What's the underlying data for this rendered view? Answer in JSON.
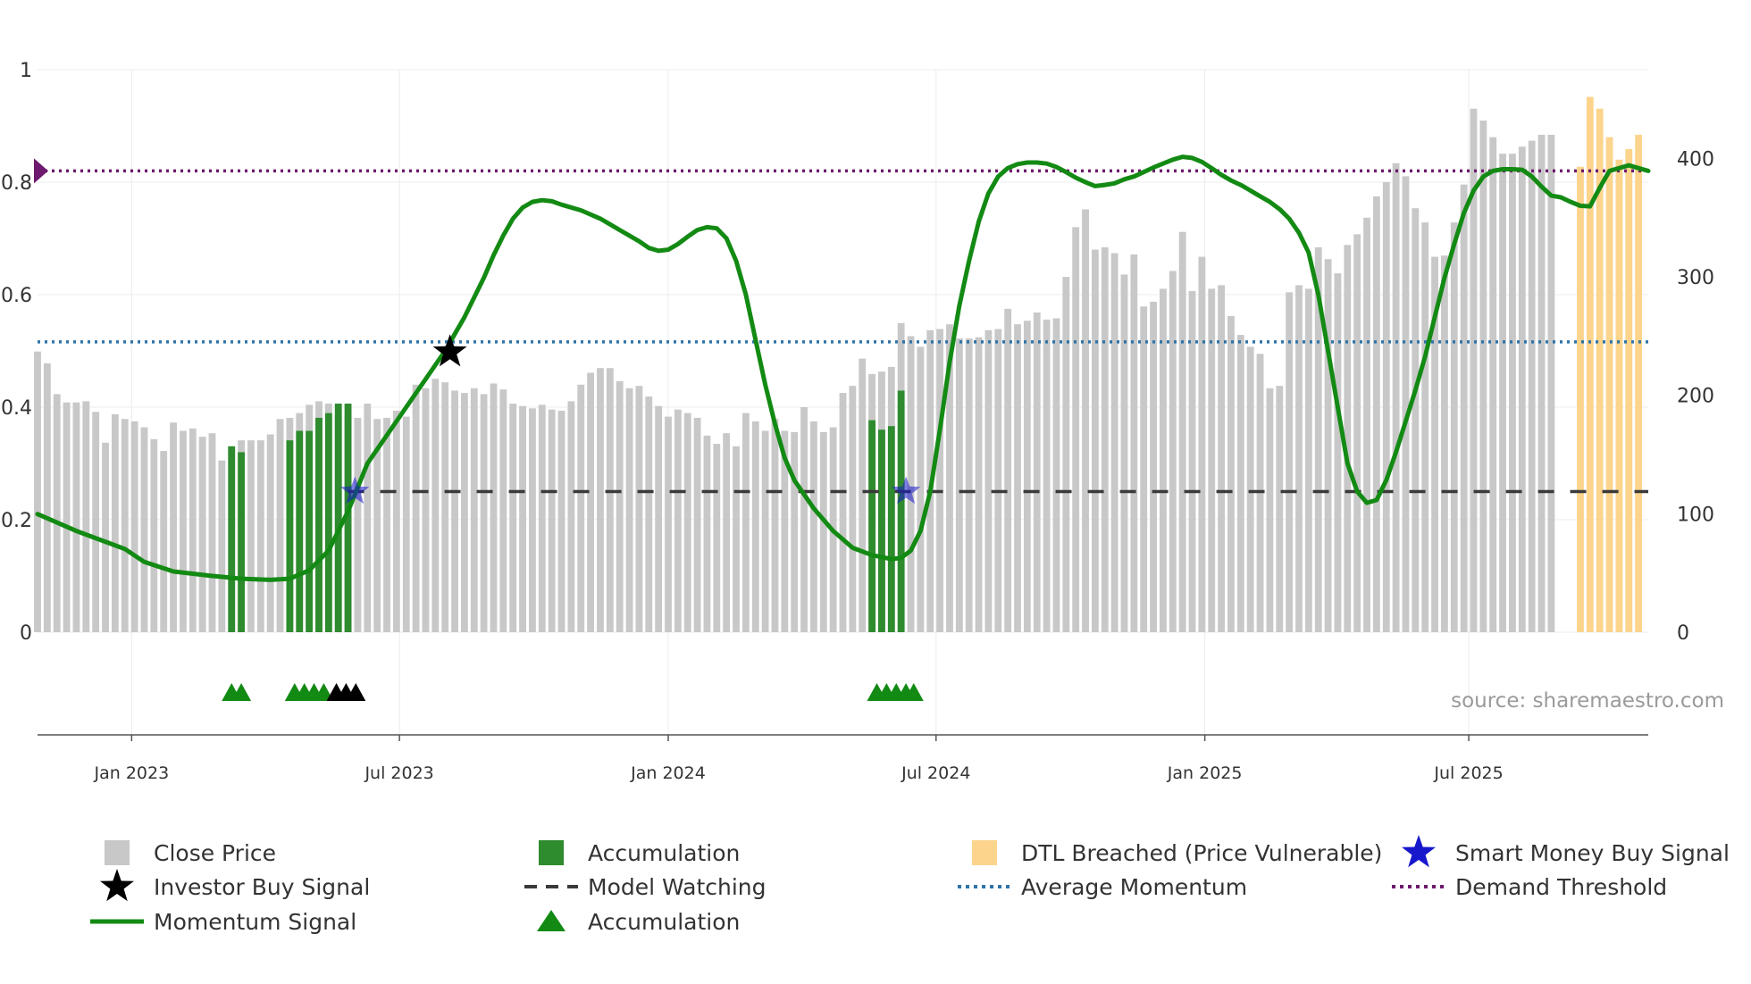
{
  "chart_data": {
    "type": "bar",
    "title": "",
    "source": "source: sharemaestro.com",
    "colors": {
      "close": "#c8c8c8",
      "accumulation": "#2e8b2e",
      "dtl": "#fcd48c",
      "momentum": "#138a13",
      "average": "#2f73a8",
      "threshold": "#6e1a6e",
      "watching": "#3a3a3a",
      "investor": "#000000",
      "smart": "#1717cc"
    },
    "y_left": {
      "ylim": [
        0,
        1
      ],
      "ticks": [
        0,
        0.2,
        0.4,
        0.6,
        0.8,
        1
      ],
      "labels": [
        "0",
        "0.2",
        "0.4",
        "0.6",
        "0.8",
        "1"
      ]
    },
    "y_right": {
      "ylim": [
        0,
        475
      ],
      "ticks": [
        0,
        100,
        200,
        300,
        400
      ],
      "labels": [
        "0",
        "100",
        "200",
        "300",
        "400"
      ]
    },
    "x_axis": {
      "range": [
        0,
        166
      ],
      "ticks": [
        9.7,
        37.3,
        65,
        92.6,
        120.3,
        147.5
      ],
      "labels": [
        "Jan 2023",
        "Jul 2023",
        "Jan 2024",
        "Jul 2024",
        "Jan 2025",
        "Jul 2025"
      ]
    },
    "close_price": [
      237,
      227,
      201,
      194,
      194,
      195,
      186,
      160,
      184,
      180,
      178,
      173,
      163,
      153,
      177,
      170,
      172,
      165,
      168,
      145,
      155,
      162,
      162,
      162,
      167,
      180,
      181,
      185,
      192,
      195,
      193,
      183,
      182,
      181,
      193,
      180,
      181,
      187,
      182,
      209,
      206,
      214,
      211,
      204,
      202,
      206,
      201,
      210,
      205,
      193,
      191,
      189,
      192,
      188,
      187,
      195,
      209,
      219,
      223,
      223,
      212,
      206,
      208,
      199,
      191,
      182,
      188,
      185,
      181,
      166,
      159,
      168,
      157,
      185,
      178,
      170,
      180,
      170,
      169,
      190,
      178,
      169,
      173,
      202,
      208,
      231,
      218,
      220,
      224,
      261,
      250,
      241,
      255,
      256,
      260,
      248,
      248,
      249,
      255,
      256,
      273,
      260,
      263,
      270,
      264,
      265,
      300,
      342,
      357,
      323,
      325,
      320,
      302,
      319,
      275,
      279,
      290,
      305,
      338,
      288,
      317,
      290,
      293,
      267,
      251,
      241,
      235,
      206,
      208,
      287,
      293,
      290,
      325,
      315,
      303,
      327,
      336,
      350,
      368,
      380,
      396,
      385,
      358,
      346,
      317,
      318,
      346,
      378,
      442,
      432,
      418,
      404,
      404,
      410,
      415,
      420,
      420
    ],
    "accumulation_bars": [
      {
        "x": 20,
        "value": 157
      },
      {
        "x": 21,
        "value": 152
      },
      {
        "x": 26,
        "value": 162
      },
      {
        "x": 27,
        "value": 170
      },
      {
        "x": 28,
        "value": 170
      },
      {
        "x": 29,
        "value": 181
      },
      {
        "x": 30,
        "value": 185
      },
      {
        "x": 31,
        "value": 193
      },
      {
        "x": 32,
        "value": 193
      },
      {
        "x": 86,
        "value": 179
      },
      {
        "x": 87,
        "value": 171
      },
      {
        "x": 88,
        "value": 174
      },
      {
        "x": 89,
        "value": 204
      }
    ],
    "dtl_bars": [
      {
        "x": 159,
        "value": 393
      },
      {
        "x": 160,
        "value": 452
      },
      {
        "x": 161,
        "value": 442
      },
      {
        "x": 162,
        "value": 418
      },
      {
        "x": 163,
        "value": 399
      },
      {
        "x": 164,
        "value": 408
      },
      {
        "x": 165,
        "value": 420
      }
    ],
    "momentum_signal": [
      [
        0,
        0.21
      ],
      [
        4,
        0.18
      ],
      [
        9,
        0.148
      ],
      [
        11,
        0.125
      ],
      [
        14,
        0.108
      ],
      [
        18,
        0.1
      ],
      [
        21,
        0.095
      ],
      [
        24,
        0.093
      ],
      [
        26,
        0.095
      ],
      [
        28,
        0.11
      ],
      [
        30,
        0.145
      ],
      [
        32,
        0.215
      ],
      [
        34,
        0.3
      ],
      [
        36,
        0.35
      ],
      [
        38,
        0.4
      ],
      [
        40,
        0.45
      ],
      [
        42,
        0.5
      ],
      [
        44,
        0.56
      ],
      [
        46,
        0.63
      ],
      [
        47,
        0.67
      ],
      [
        48,
        0.705
      ],
      [
        49,
        0.735
      ],
      [
        50,
        0.755
      ],
      [
        51,
        0.765
      ],
      [
        52,
        0.768
      ],
      [
        53,
        0.766
      ],
      [
        54,
        0.76
      ],
      [
        56,
        0.75
      ],
      [
        58,
        0.735
      ],
      [
        60,
        0.715
      ],
      [
        62,
        0.695
      ],
      [
        63,
        0.683
      ],
      [
        64,
        0.678
      ],
      [
        65,
        0.68
      ],
      [
        66,
        0.69
      ],
      [
        67,
        0.703
      ],
      [
        68,
        0.715
      ],
      [
        69,
        0.72
      ],
      [
        70,
        0.718
      ],
      [
        71,
        0.7
      ],
      [
        72,
        0.66
      ],
      [
        73,
        0.6
      ],
      [
        74,
        0.52
      ],
      [
        75,
        0.44
      ],
      [
        76,
        0.37
      ],
      [
        77,
        0.31
      ],
      [
        78,
        0.27
      ],
      [
        80,
        0.22
      ],
      [
        82,
        0.18
      ],
      [
        84,
        0.15
      ],
      [
        86,
        0.137
      ],
      [
        88,
        0.13
      ],
      [
        89,
        0.132
      ],
      [
        90,
        0.145
      ],
      [
        91,
        0.18
      ],
      [
        92,
        0.25
      ],
      [
        93,
        0.36
      ],
      [
        94,
        0.48
      ],
      [
        95,
        0.58
      ],
      [
        96,
        0.66
      ],
      [
        97,
        0.73
      ],
      [
        98,
        0.78
      ],
      [
        99,
        0.81
      ],
      [
        100,
        0.825
      ],
      [
        101,
        0.832
      ],
      [
        102,
        0.835
      ],
      [
        103,
        0.835
      ],
      [
        104,
        0.833
      ],
      [
        105,
        0.827
      ],
      [
        106,
        0.818
      ],
      [
        107,
        0.808
      ],
      [
        108,
        0.8
      ],
      [
        109,
        0.793
      ],
      [
        110,
        0.795
      ],
      [
        111,
        0.798
      ],
      [
        112,
        0.805
      ],
      [
        113,
        0.81
      ],
      [
        114,
        0.818
      ],
      [
        115,
        0.826
      ],
      [
        116,
        0.833
      ],
      [
        117,
        0.84
      ],
      [
        118,
        0.845
      ],
      [
        119,
        0.843
      ],
      [
        120,
        0.836
      ],
      [
        121,
        0.825
      ],
      [
        122,
        0.813
      ],
      [
        123,
        0.803
      ],
      [
        124,
        0.795
      ],
      [
        125,
        0.785
      ],
      [
        126,
        0.775
      ],
      [
        127,
        0.765
      ],
      [
        128,
        0.752
      ],
      [
        129,
        0.735
      ],
      [
        130,
        0.71
      ],
      [
        131,
        0.675
      ],
      [
        132,
        0.6
      ],
      [
        133,
        0.5
      ],
      [
        134,
        0.4
      ],
      [
        135,
        0.3
      ],
      [
        136,
        0.25
      ],
      [
        137,
        0.23
      ],
      [
        138,
        0.235
      ],
      [
        139,
        0.27
      ],
      [
        140,
        0.32
      ],
      [
        141,
        0.375
      ],
      [
        142,
        0.43
      ],
      [
        143,
        0.49
      ],
      [
        144,
        0.56
      ],
      [
        145,
        0.63
      ],
      [
        146,
        0.69
      ],
      [
        147,
        0.745
      ],
      [
        148,
        0.785
      ],
      [
        149,
        0.81
      ],
      [
        150,
        0.82
      ],
      [
        151,
        0.823
      ],
      [
        152,
        0.823
      ],
      [
        153,
        0.822
      ],
      [
        154,
        0.81
      ],
      [
        155,
        0.792
      ],
      [
        156,
        0.776
      ],
      [
        157,
        0.773
      ],
      [
        158,
        0.765
      ],
      [
        159,
        0.758
      ],
      [
        160,
        0.757
      ],
      [
        161,
        0.79
      ],
      [
        162,
        0.82
      ],
      [
        163,
        0.825
      ],
      [
        164,
        0.83
      ],
      [
        165,
        0.825
      ],
      [
        166,
        0.82
      ]
    ],
    "average_momentum": 0.516,
    "demand_threshold": 0.82,
    "model_watching": {
      "value": 0.25,
      "x_start": 32,
      "x_end": 166
    },
    "investor_buy_signal": [
      {
        "x": 42.5,
        "y": 0.498
      }
    ],
    "smart_money_buy_signal": [
      {
        "x": 32.7,
        "y": 0.25
      },
      {
        "x": 89.5,
        "y": 0.25
      }
    ],
    "accumulation_markers": [
      {
        "x": 20,
        "color": "green"
      },
      {
        "x": 21,
        "color": "green"
      },
      {
        "x": 26.5,
        "color": "green"
      },
      {
        "x": 27.5,
        "color": "green"
      },
      {
        "x": 28.5,
        "color": "green"
      },
      {
        "x": 29.5,
        "color": "green"
      },
      {
        "x": 30.8,
        "color": "black"
      },
      {
        "x": 31.8,
        "color": "black"
      },
      {
        "x": 32.8,
        "color": "black"
      },
      {
        "x": 86.5,
        "color": "green"
      },
      {
        "x": 87.5,
        "color": "green"
      },
      {
        "x": 88.5,
        "color": "green"
      },
      {
        "x": 89.5,
        "color": "green"
      },
      {
        "x": 90.3,
        "color": "green"
      }
    ],
    "legend": [
      {
        "label": "Close Price",
        "kind": "square",
        "key": "close"
      },
      {
        "label": "Accumulation",
        "kind": "square",
        "key": "accumulation"
      },
      {
        "label": "DTL Breached (Price Vulnerable)",
        "kind": "square",
        "key": "dtl"
      },
      {
        "label": "Smart Money Buy Signal",
        "kind": "star",
        "key": "smart"
      },
      {
        "label": "Investor Buy Signal",
        "kind": "star",
        "key": "investor"
      },
      {
        "label": "Model Watching",
        "kind": "dash",
        "key": "watching"
      },
      {
        "label": "Average Momentum",
        "kind": "dot",
        "key": "average"
      },
      {
        "label": "Demand Threshold",
        "kind": "dot",
        "key": "threshold"
      },
      {
        "label": "Momentum Signal",
        "kind": "line",
        "key": "momentum"
      },
      {
        "label": "Accumulation",
        "kind": "triangle",
        "key": "accumulation"
      }
    ]
  }
}
